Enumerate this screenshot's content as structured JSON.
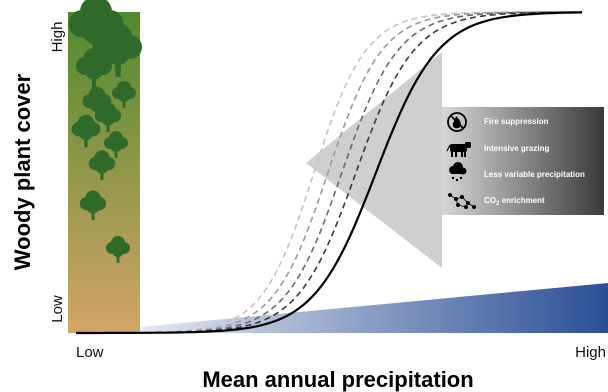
{
  "y_axis": {
    "title": "Woody plant cover",
    "high_label": "High",
    "low_label": "Low"
  },
  "x_axis": {
    "title": "Mean annual precipitation",
    "low_label": "Low",
    "high_label": "High"
  },
  "legend": {
    "items": [
      {
        "icon": "fire-suppression-icon",
        "label": "Fire suppression"
      },
      {
        "icon": "cow-icon",
        "label": "Intensive grazing"
      },
      {
        "icon": "rain-cloud-icon",
        "label": "Less variable precipitation"
      },
      {
        "icon": "co2-molecule-icon",
        "label_main": "CO",
        "label_sub": "2",
        "label_rest": " enrichment"
      }
    ]
  },
  "colors": {
    "bar_top": "#4f8a2e",
    "bar_bottom": "#d3a468",
    "tree": "#2f6a2a",
    "arrow": "#cfcfcf",
    "legend_box_left": "#d6d6d6",
    "legend_box_right": "#3a3a3a",
    "precip_wedge_left": "#ffffff",
    "precip_wedge_right": "#2a4f95",
    "curve_solid": "#000000",
    "curve_dashed": [
      "#3a3a3a",
      "#6a6a6a",
      "#999999",
      "#c4c4c4"
    ]
  }
}
